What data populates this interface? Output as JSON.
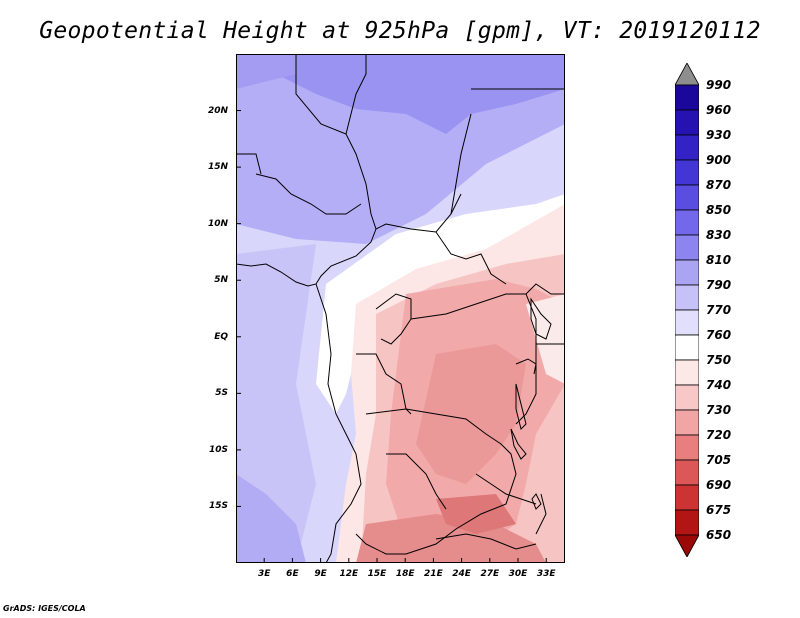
{
  "title": "Geopotential Height at 925hPa [gpm], VT: 2019120112",
  "map": {
    "lat_labels": [
      "20N",
      "15N",
      "10N",
      "5N",
      "EQ",
      "5S",
      "10S",
      "15S"
    ],
    "lat_values": [
      20,
      15,
      10,
      5,
      0,
      -5,
      -10,
      -15
    ],
    "lon_labels": [
      "3E",
      "6E",
      "9E",
      "12E",
      "15E",
      "18E",
      "21E",
      "24E",
      "27E",
      "30E",
      "33E"
    ],
    "lon_values": [
      3,
      6,
      9,
      12,
      15,
      18,
      21,
      24,
      27,
      30,
      33
    ],
    "lon_range": [
      0,
      35
    ],
    "lat_range": [
      -20,
      25
    ]
  },
  "colorbar": {
    "labels": [
      "990",
      "960",
      "930",
      "900",
      "870",
      "850",
      "830",
      "810",
      "790",
      "770",
      "760",
      "750",
      "740",
      "730",
      "720",
      "705",
      "690",
      "675",
      "650"
    ],
    "colors": [
      "#8e8e8e",
      "#1b079a",
      "#2612b0",
      "#3322c4",
      "#4436d4",
      "#5a4ee0",
      "#7468ea",
      "#8d84ef",
      "#aaa4f3",
      "#c6c2f8",
      "#e1dffb",
      "#ffffff",
      "#fde8e8",
      "#f8c8c8",
      "#f1a5a5",
      "#e87e7e",
      "#dc5858",
      "#cc3434",
      "#b31515",
      "#9a0808"
    ]
  },
  "credit": "GrADS: IGES/COLA"
}
